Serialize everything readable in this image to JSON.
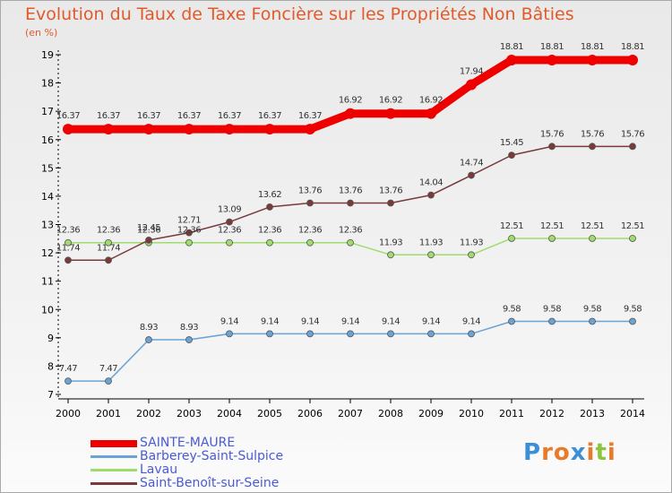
{
  "chart_data": {
    "type": "line",
    "title": "Evolution du Taux de Taxe Foncière sur les Propriétés Non Bâties",
    "subtitle": "(en %)",
    "x": [
      "2000",
      "2001",
      "2002",
      "2003",
      "2004",
      "2005",
      "2006",
      "2007",
      "2008",
      "2009",
      "2010",
      "2011",
      "2012",
      "2013",
      "2014"
    ],
    "ylim": [
      7,
      19
    ],
    "yticks": [
      "7",
      "8",
      "9",
      "10",
      "11",
      "12",
      "13",
      "14",
      "15",
      "16",
      "17",
      "18",
      "19"
    ],
    "grid": false,
    "legend_position": "bottom-left",
    "series": [
      {
        "name": "SAINTE-MAURE",
        "color": "#ee0000",
        "values": [
          16.37,
          16.37,
          16.37,
          16.37,
          16.37,
          16.37,
          16.37,
          16.92,
          16.92,
          16.92,
          17.94,
          18.81,
          18.81,
          18.81,
          18.81
        ],
        "labels": [
          "16.37",
          "16.37",
          "16.37",
          "16.37",
          "16.37",
          "16.37",
          "16.37",
          "16.92",
          "16.92",
          "16.92",
          "17.94",
          "18.81",
          "18.81",
          "18.81",
          "18.81"
        ]
      },
      {
        "name": "Barberey-Saint-Sulpice",
        "color": "#6aa3d4",
        "values": [
          7.47,
          7.47,
          8.93,
          8.93,
          9.14,
          9.14,
          9.14,
          9.14,
          9.14,
          9.14,
          9.14,
          9.58,
          9.58,
          9.58,
          9.58
        ],
        "labels": [
          "7.47",
          "7.47",
          "8.93",
          "8.93",
          "9.14",
          "9.14",
          "9.14",
          "9.14",
          "9.14",
          "9.14",
          "9.14",
          "9.58",
          "9.58",
          "9.58",
          "9.58"
        ]
      },
      {
        "name": "Lavau",
        "color": "#9fdc6c",
        "values": [
          12.36,
          12.36,
          12.36,
          12.36,
          12.36,
          12.36,
          12.36,
          12.36,
          11.93,
          11.93,
          11.93,
          12.51,
          12.51,
          12.51,
          12.51
        ],
        "labels": [
          "12.36",
          "12.36",
          "12.36",
          "12.36",
          "12.36",
          "12.36",
          "12.36",
          "12.36",
          "11.93",
          "11.93",
          "11.93",
          "12.51",
          "12.51",
          "12.51",
          "12.51"
        ]
      },
      {
        "name": "Saint-Benoît-sur-Seine",
        "color": "#7a3a3a",
        "values": [
          11.74,
          11.74,
          12.45,
          12.71,
          13.09,
          13.62,
          13.76,
          13.76,
          13.76,
          14.04,
          14.74,
          15.45,
          15.76,
          15.76,
          15.76
        ],
        "labels": [
          "11.74",
          "11.74",
          "12.45",
          "12.71",
          "13.09",
          "13.62",
          "13.76",
          "13.76",
          "13.76",
          "14.04",
          "14.74",
          "15.45",
          "15.76",
          "15.76",
          "15.76"
        ]
      }
    ]
  },
  "logo": {
    "text": "Proxiti",
    "letters": [
      {
        "ch": "P",
        "color": "#3c8fd6"
      },
      {
        "ch": "r",
        "color": "#e87a2a"
      },
      {
        "ch": "o",
        "color": "#e87a2a"
      },
      {
        "ch": "x",
        "color": "#3c8fd6"
      },
      {
        "ch": "i",
        "color": "#e87a2a"
      },
      {
        "ch": "t",
        "color": "#8cc63f"
      },
      {
        "ch": "i",
        "color": "#e87a2a"
      }
    ]
  }
}
